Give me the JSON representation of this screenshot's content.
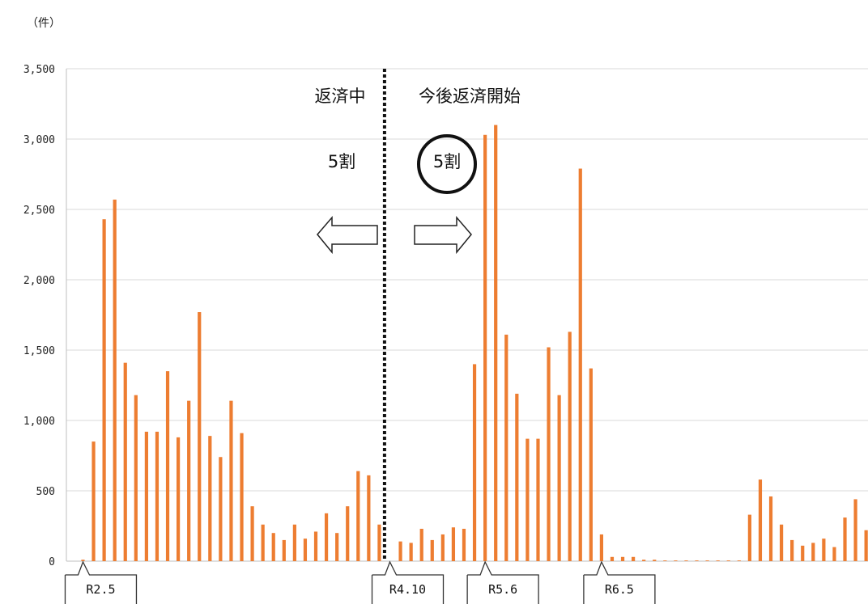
{
  "chart_data": {
    "type": "bar",
    "unit": "（件）",
    "ylim": [
      0,
      3500
    ],
    "yticks": [
      "0",
      "500",
      "1,000",
      "1,500",
      "2,000",
      "2,500",
      "3,000",
      "3,500"
    ],
    "grid": true,
    "bar_color": "#ed7d31",
    "values": [
      0,
      10,
      850,
      2430,
      2570,
      1410,
      1180,
      920,
      920,
      1350,
      880,
      1140,
      1770,
      890,
      740,
      1140,
      910,
      390,
      260,
      200,
      150,
      260,
      160,
      210,
      340,
      200,
      390,
      640,
      610,
      260,
      0,
      140,
      130,
      230,
      150,
      190,
      240,
      230,
      1400,
      3030,
      3100,
      1610,
      1190,
      870,
      870,
      1520,
      1180,
      1630,
      2790,
      1370,
      190,
      30,
      30,
      30,
      10,
      10,
      5,
      5,
      5,
      5,
      5,
      5,
      5,
      5,
      330,
      580,
      460,
      260,
      150,
      110,
      130,
      160,
      100,
      310,
      440,
      220
    ],
    "annotations": {
      "left_label": "返済中",
      "left_ratio": "5割",
      "right_label": "今後返済開始",
      "right_ratio": "5割",
      "divider_index": 30
    },
    "callouts": [
      {
        "label": "R2.5",
        "index": 1
      },
      {
        "label": "R4.10",
        "index": 30
      },
      {
        "label": "R5.6",
        "index": 39
      },
      {
        "label": "R6.5",
        "index": 50
      }
    ]
  }
}
